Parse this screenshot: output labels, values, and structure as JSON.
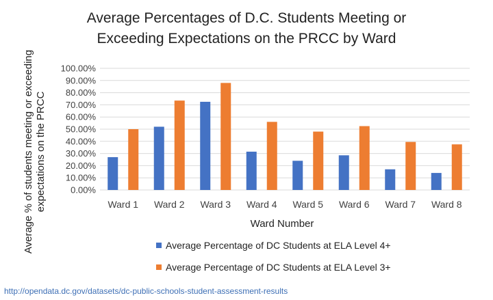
{
  "chart_data": {
    "type": "bar",
    "title_lines": [
      "Average Percentages of D.C. Students Meeting or",
      "Exceeding Expectations on the PRCC by Ward"
    ],
    "xlabel": "Ward Number",
    "ylabel_lines": [
      "Average % of students meeting or exceeding",
      "expectations on the PRCC"
    ],
    "categories": [
      "Ward 1",
      "Ward 2",
      "Ward 3",
      "Ward 4",
      "Ward 5",
      "Ward 6",
      "Ward 7",
      "Ward 8"
    ],
    "ylim": [
      0,
      100
    ],
    "yticks": [
      0,
      10,
      20,
      30,
      40,
      50,
      60,
      70,
      80,
      90,
      100
    ],
    "ytick_labels": [
      "0.00%",
      "10.00%",
      "20.00%",
      "30.00%",
      "40.00%",
      "50.00%",
      "60.00%",
      "70.00%",
      "80.00%",
      "90.00%",
      "100.00%"
    ],
    "grid": true,
    "legend_position": "bottom",
    "series": [
      {
        "name": "Average Percentage of DC Students at ELA Level 4+",
        "color": "#4472c4",
        "values": [
          27,
          52,
          72.5,
          31.5,
          24,
          28.5,
          17,
          14
        ]
      },
      {
        "name": "Average Percentage of DC Students at ELA Level 3+",
        "color": "#ed7d31",
        "values": [
          50,
          73.5,
          88,
          56,
          48,
          52.5,
          39.5,
          37.5
        ]
      }
    ]
  },
  "source_link": "http://opendata.dc.gov/datasets/dc-public-schools-student-assessment-results"
}
